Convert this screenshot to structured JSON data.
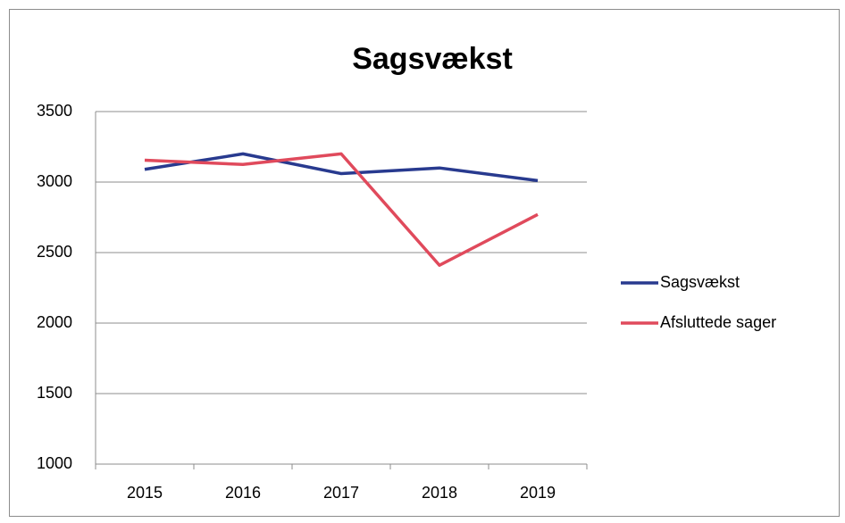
{
  "chart_data": {
    "type": "line",
    "title": "Sagsvækst",
    "categories": [
      "2015",
      "2016",
      "2017",
      "2018",
      "2019"
    ],
    "series": [
      {
        "name": "Sagsvækst",
        "color": "#283a8f",
        "values": [
          3090,
          3200,
          3060,
          3100,
          3010
        ]
      },
      {
        "name": "Afsluttede sager",
        "color": "#e04a5c",
        "values": [
          3155,
          3125,
          3200,
          2410,
          2770
        ]
      }
    ],
    "ylim": [
      1000,
      3500
    ],
    "yticks": [
      1000,
      1500,
      2000,
      2500,
      3000,
      3500
    ],
    "grid": true,
    "legend": "right"
  }
}
